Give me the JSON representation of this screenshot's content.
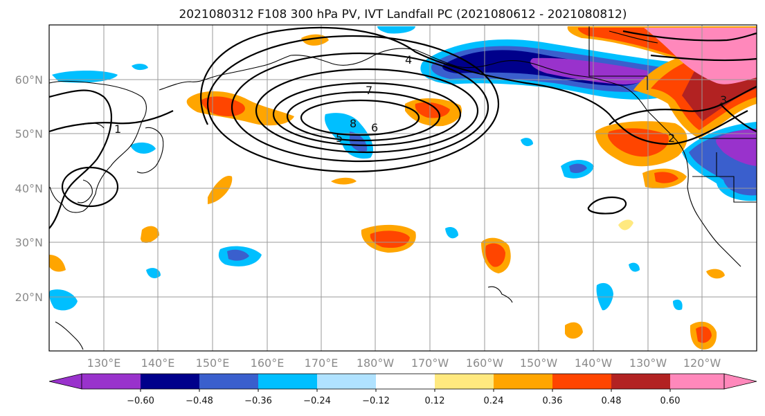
{
  "title": "2021080312 F108 300 hPa PV, IVT Landfall PC (2021080612 - 2021080812)",
  "lat_labels": [
    "60°N",
    "50°N",
    "40°N",
    "30°N",
    "20°N"
  ],
  "lon_labels": [
    "130°E",
    "140°E",
    "150°E",
    "160°E",
    "170°E",
    "180°W",
    "170°W",
    "160°W",
    "150°W",
    "140°W",
    "130°W",
    "120°W"
  ],
  "colorbar": {
    "ticks": [
      "−0.60",
      "−0.48",
      "−0.36",
      "−0.24",
      "−0.12",
      "0.12",
      "0.24",
      "0.36",
      "0.48",
      "0.60"
    ],
    "colors": [
      "#9932cc",
      "#00008b",
      "#3a5fcd",
      "#00bfff",
      "#b0e2ff",
      "#ffffff",
      "#ffe97f",
      "#ffa500",
      "#ff4500",
      "#b22222",
      "#ff88bb"
    ]
  },
  "contour_labels": [
    "7",
    "8",
    "6",
    "5",
    "4",
    "3",
    "2",
    "1"
  ]
}
